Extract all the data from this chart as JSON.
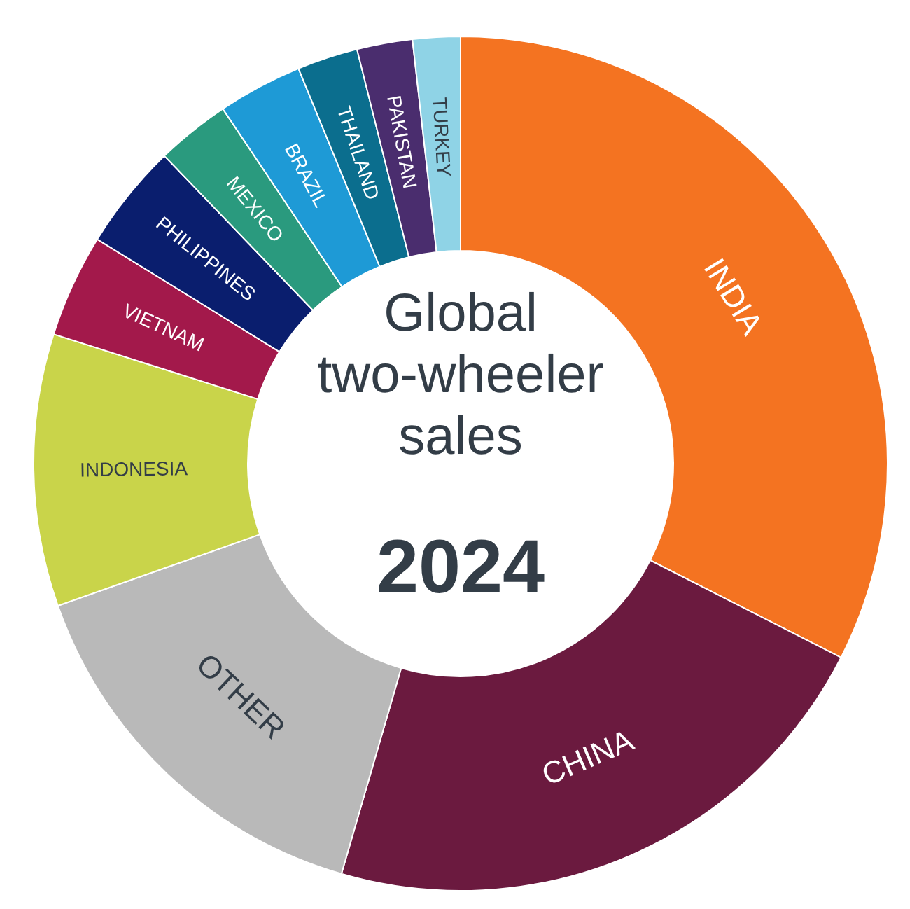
{
  "chart_data": {
    "type": "donut",
    "title": "Global two-wheeler sales",
    "subtitle": "2024",
    "categories": [
      "INDIA",
      "CHINA",
      "OTHER",
      "INDONESIA",
      "VIETNAM",
      "PHILIPPINES",
      "MEXICO",
      "BRAZIL",
      "THAILAND",
      "PAKISTAN",
      "TURKEY"
    ],
    "values": [
      32.5,
      22,
      15.1,
      10.3,
      3.9,
      4.0,
      2.8,
      3.2,
      2.3,
      2.1,
      1.8
    ],
    "colors": [
      "#f47321",
      "#6b1a3f",
      "#b9b9b9",
      "#c9d44a",
      "#a3194b",
      "#0a1e6e",
      "#2a9a7e",
      "#1e9ad6",
      "#0b6e8e",
      "#4a2d6e",
      "#8fd3e6"
    ]
  }
}
